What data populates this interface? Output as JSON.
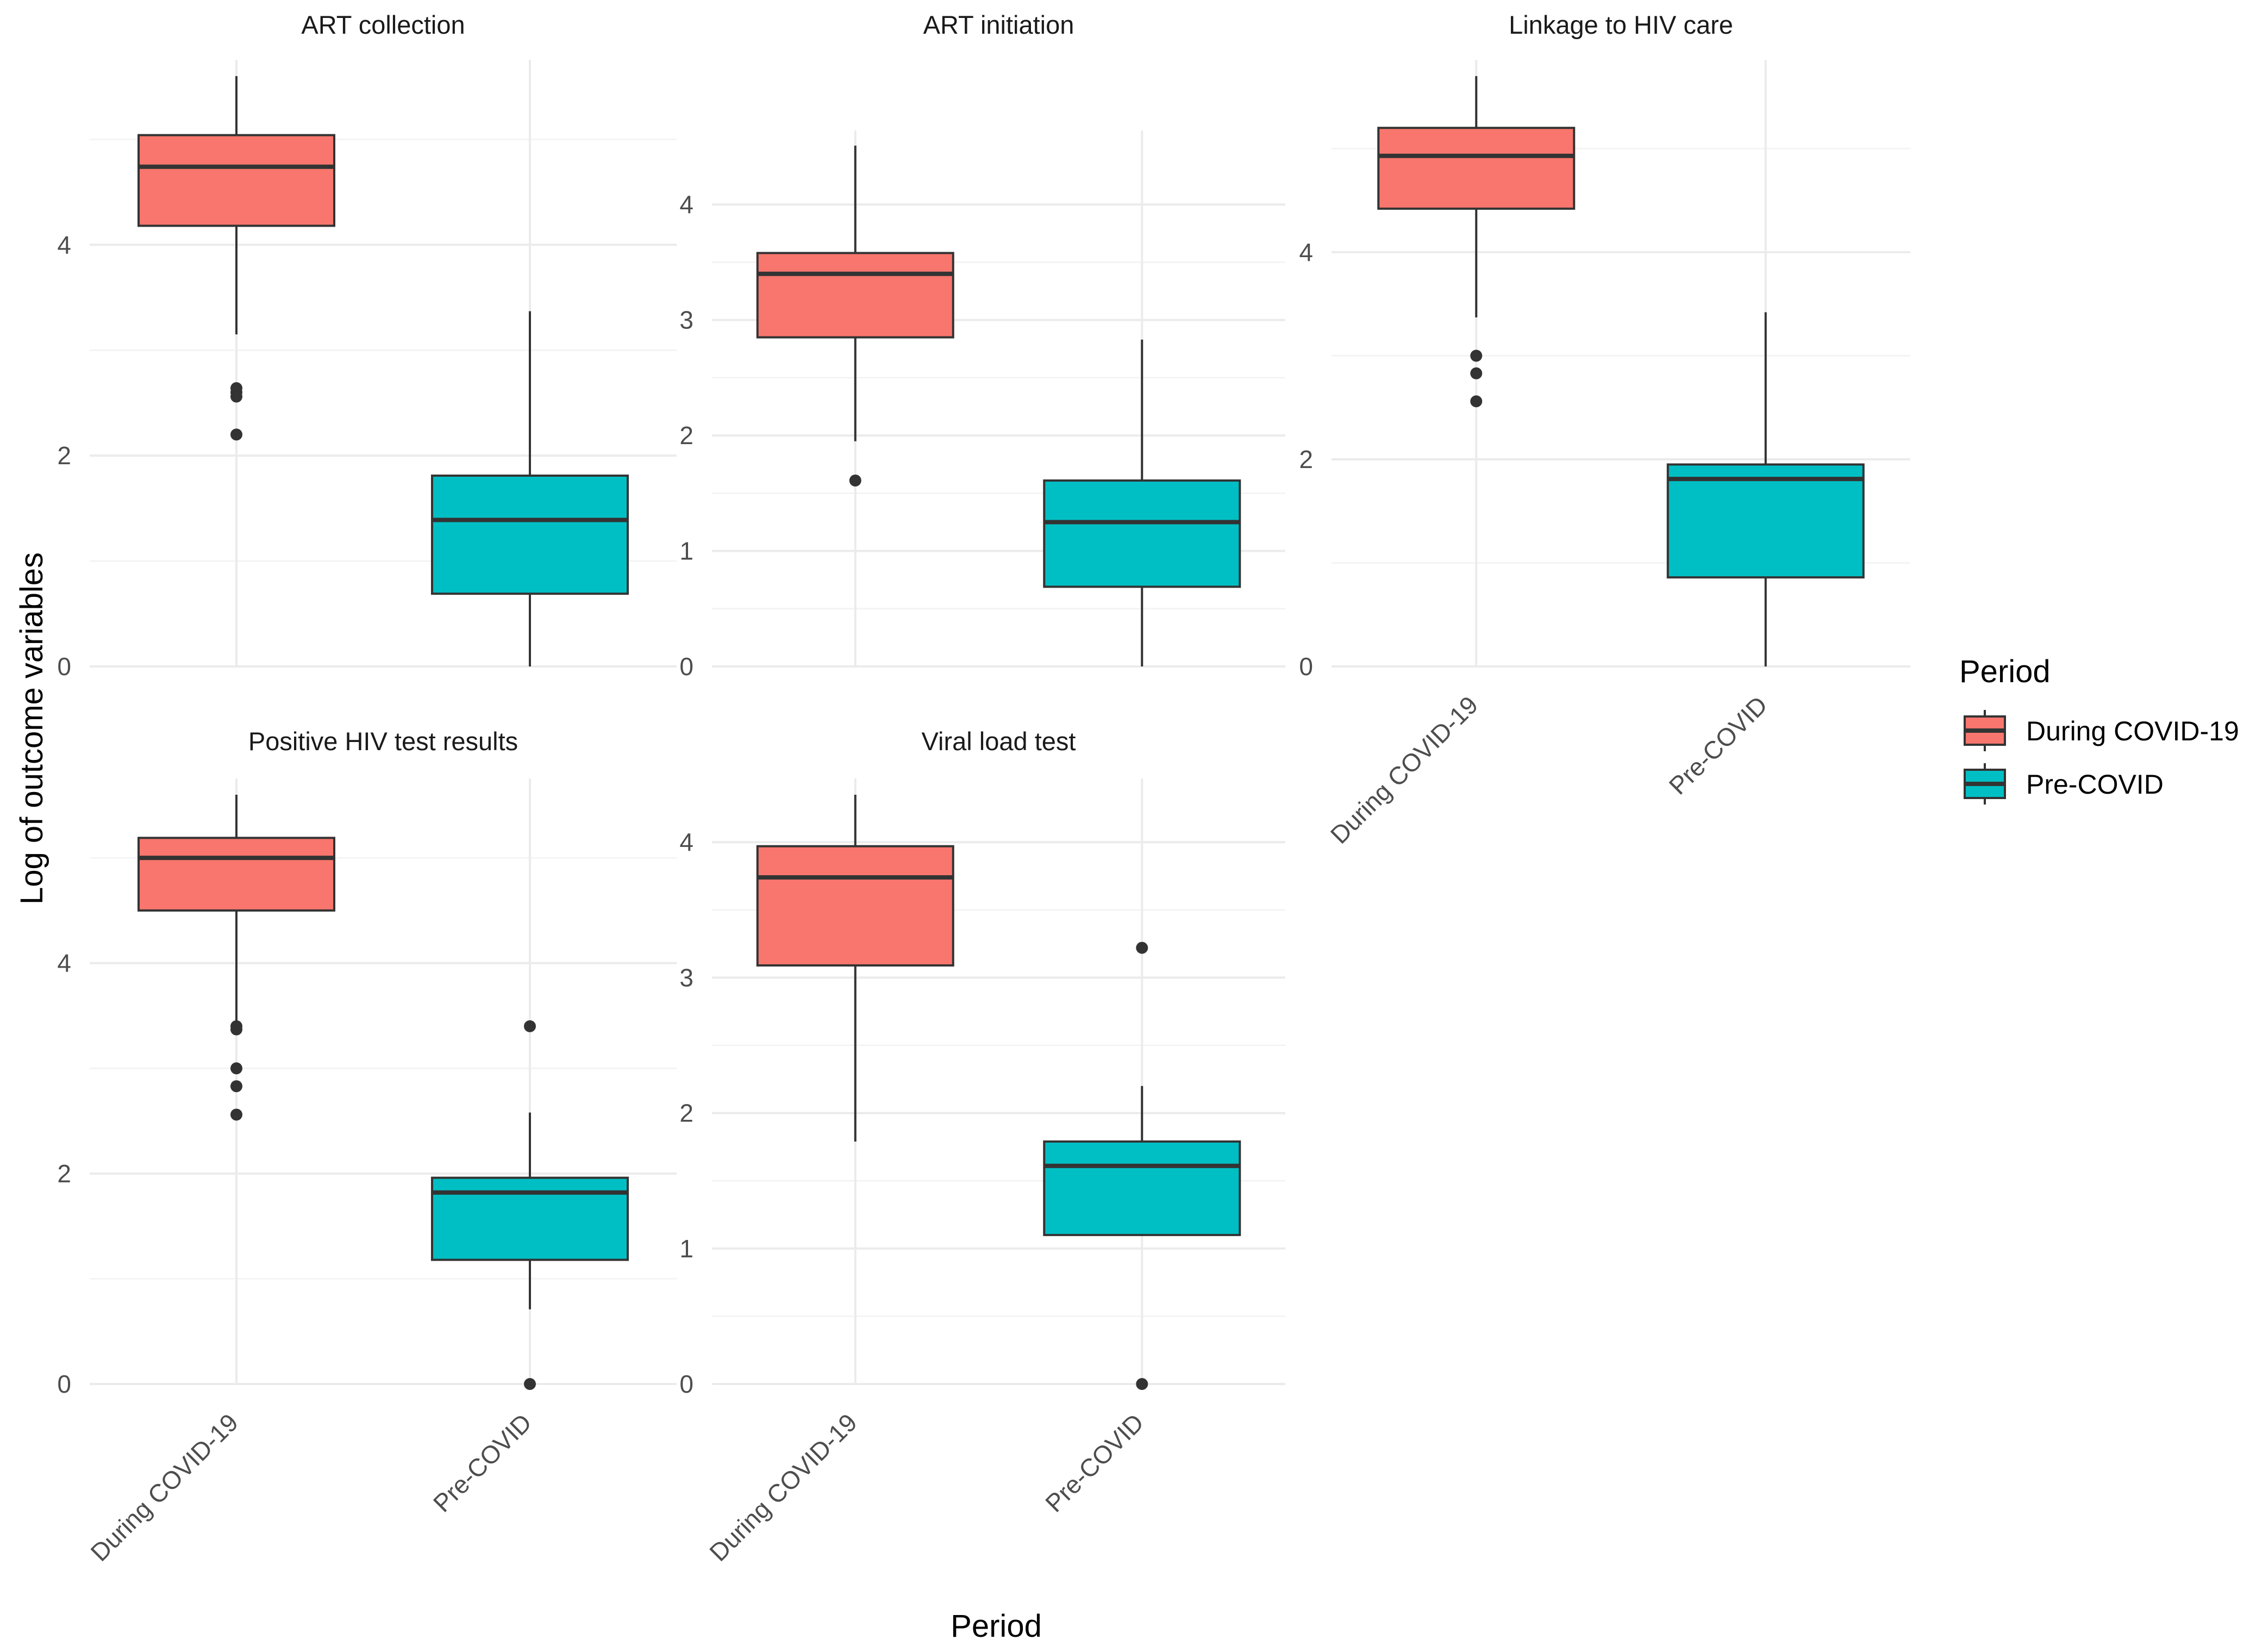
{
  "chart_data": {
    "type": "boxplot",
    "xlabel": "Period",
    "ylabel": "Log of outcome variables",
    "legend": {
      "title": "Period",
      "position": "right",
      "items": [
        {
          "label": "During COVID-19",
          "color": "#F8766D"
        },
        {
          "label": "Pre-COVID",
          "color": "#00BFC4"
        }
      ]
    },
    "categories": [
      "During COVID-19",
      "Pre-COVID"
    ],
    "colors": {
      "During COVID-19": "#F8766D",
      "Pre-COVID": "#00BFC4"
    },
    "panels": [
      {
        "title": "ART collection",
        "ylim": [
          0,
          5.6
        ],
        "yticks": [
          0,
          2,
          4
        ],
        "boxes": [
          {
            "group": "During COVID-19",
            "whisker_low": 3.15,
            "q1": 4.18,
            "median": 4.74,
            "q3": 5.04,
            "whisker_high": 5.6,
            "outliers": [
              2.2,
              2.56,
              2.6,
              2.64
            ]
          },
          {
            "group": "Pre-COVID",
            "whisker_low": 0,
            "q1": 0.69,
            "median": 1.39,
            "q3": 1.81,
            "whisker_high": 3.37,
            "outliers": []
          }
        ]
      },
      {
        "title": "ART initiation",
        "ylim": [
          0,
          4.5
        ],
        "yticks": [
          0,
          1,
          2,
          3,
          4
        ],
        "boxes": [
          {
            "group": "During COVID-19",
            "whisker_low": 1.95,
            "q1": 2.85,
            "median": 3.4,
            "q3": 3.58,
            "whisker_high": 4.51,
            "outliers": [
              1.61
            ]
          },
          {
            "group": "Pre-COVID",
            "whisker_low": 0,
            "q1": 0.69,
            "median": 1.25,
            "q3": 1.61,
            "whisker_high": 2.83,
            "outliers": []
          }
        ]
      },
      {
        "title": "Linkage to HIV care",
        "ylim": [
          0,
          5.7
        ],
        "yticks": [
          0,
          2,
          4
        ],
        "boxes": [
          {
            "group": "During COVID-19",
            "whisker_low": 3.37,
            "q1": 4.42,
            "median": 4.93,
            "q3": 5.2,
            "whisker_high": 5.7,
            "outliers": [
              2.56,
              2.83,
              3.0
            ]
          },
          {
            "group": "Pre-COVID",
            "whisker_low": 0,
            "q1": 0.86,
            "median": 1.81,
            "q3": 1.95,
            "whisker_high": 3.42,
            "outliers": []
          }
        ]
      },
      {
        "title": "Positive HIV test results",
        "ylim": [
          0,
          5.6
        ],
        "yticks": [
          0,
          2,
          4
        ],
        "boxes": [
          {
            "group": "During COVID-19",
            "whisker_low": 3.4,
            "q1": 4.5,
            "median": 5.0,
            "q3": 5.19,
            "whisker_high": 5.6,
            "outliers": [
              2.56,
              2.83,
              3.0,
              3.37,
              3.4
            ]
          },
          {
            "group": "Pre-COVID",
            "whisker_low": 0.71,
            "q1": 1.18,
            "median": 1.82,
            "q3": 1.96,
            "whisker_high": 2.58,
            "outliers": [
              0,
              3.4
            ]
          }
        ]
      },
      {
        "title": "Viral load test",
        "ylim": [
          0,
          4.35
        ],
        "yticks": [
          0,
          1,
          2,
          3,
          4
        ],
        "boxes": [
          {
            "group": "During COVID-19",
            "whisker_low": 1.79,
            "q1": 3.09,
            "median": 3.74,
            "q3": 3.97,
            "whisker_high": 4.35,
            "outliers": []
          },
          {
            "group": "Pre-COVID",
            "whisker_low": 1.1,
            "q1": 1.1,
            "median": 1.61,
            "q3": 1.79,
            "whisker_high": 2.2,
            "outliers": [
              0,
              3.22
            ]
          }
        ]
      }
    ]
  }
}
